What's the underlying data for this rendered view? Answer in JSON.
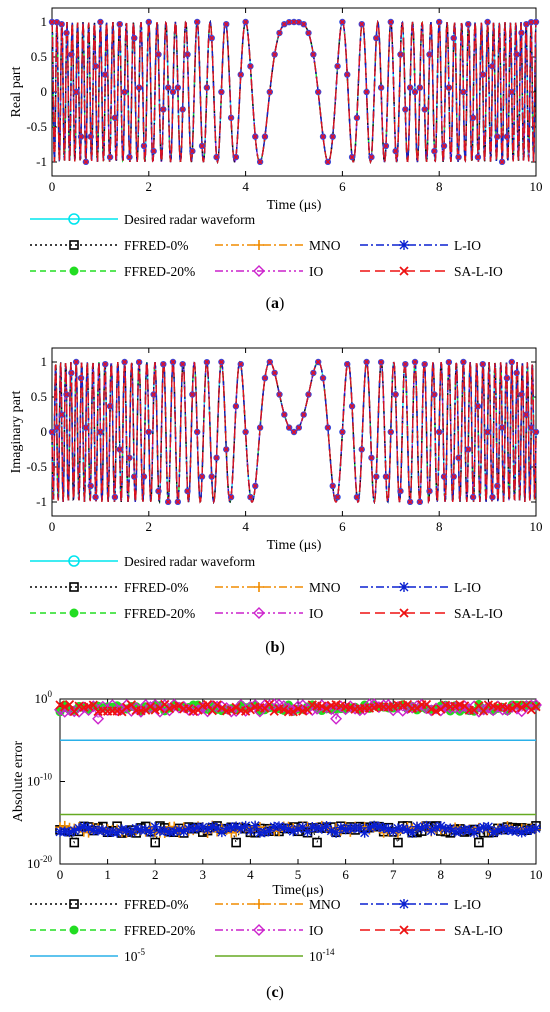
{
  "series_styles": [
    {
      "key": "desired",
      "name": "Desired radar waveform",
      "color": "#00e5ee",
      "dash": "",
      "marker": "circle"
    },
    {
      "key": "ffred0",
      "name": "FFRED-0%",
      "color": "#000000",
      "dash": "2,3",
      "marker": "square"
    },
    {
      "key": "mno",
      "name": "MNO",
      "color": "#f08c00",
      "dash": "8,3,2,3",
      "marker": "plus"
    },
    {
      "key": "lio",
      "name": "L-IO",
      "color": "#0a20d0",
      "dash": "8,3,2,3",
      "marker": "asterisk"
    },
    {
      "key": "ffred20",
      "name": "FFRED-20%",
      "color": "#22dd22",
      "dash": "6,4",
      "marker": "dot"
    },
    {
      "key": "io",
      "name": "IO",
      "color": "#cc22cc",
      "dash": "8,3,2,3,2,3",
      "marker": "diamond"
    },
    {
      "key": "salio",
      "name": "SA-L-IO",
      "color": "#ee1111",
      "dash": "10,5",
      "marker": "cross"
    }
  ],
  "chart_data": [
    {
      "id": "a",
      "type": "line",
      "panel_label": "(a)",
      "panel_letter": "a",
      "xlabel": "Time (μs)",
      "ylabel": "Real part",
      "xlim": [
        0,
        10
      ],
      "ylim": [
        -1.2,
        1.2
      ],
      "xticks": [
        0,
        2,
        4,
        6,
        8,
        10
      ],
      "yticks": [
        -1,
        -0.5,
        0,
        0.5,
        1
      ],
      "yticklabels": [
        "-1",
        "-0.5",
        "0",
        "0.5",
        "1"
      ],
      "signal": "real",
      "waveform": "cos(pi*2*(t-5)^2)",
      "legend": [
        [
          "desired"
        ],
        [
          "ffred0",
          "mno",
          "lio"
        ],
        [
          "ffred20",
          "io",
          "salio"
        ]
      ]
    },
    {
      "id": "b",
      "type": "line",
      "panel_label": "(b)",
      "panel_letter": "b",
      "xlabel": "Time (μs)",
      "ylabel": "Imaginary part",
      "xlim": [
        0,
        10
      ],
      "ylim": [
        -1.2,
        1.2
      ],
      "xticks": [
        0,
        2,
        4,
        6,
        8,
        10
      ],
      "yticks": [
        -1,
        -0.5,
        0,
        0.5,
        1
      ],
      "yticklabels": [
        "-1",
        "-0.5",
        "0",
        "0.5",
        "1"
      ],
      "signal": "imag",
      "waveform": "sin(pi*2*(t-5)^2)",
      "legend": [
        [
          "desired"
        ],
        [
          "ffred0",
          "mno",
          "lio"
        ],
        [
          "ffred20",
          "io",
          "salio"
        ]
      ]
    },
    {
      "id": "c",
      "type": "scatter",
      "panel_label": "(c)",
      "panel_letter": "c",
      "xlabel": "Time(μs)",
      "ylabel": "Absolute error",
      "xlim": [
        0,
        10
      ],
      "ylim": [
        -20,
        0
      ],
      "yscale": "log",
      "xticks": [
        0,
        1,
        2,
        3,
        4,
        5,
        6,
        7,
        8,
        9,
        10
      ],
      "yticks": [
        0,
        -10,
        -20
      ],
      "yticklabels": [
        "10^0",
        "10^-10",
        "10^-20"
      ],
      "ytick_base": "10",
      "ytick_exponents": [
        "0",
        "-10",
        "-20"
      ],
      "reference_lines": [
        {
          "name": "10^-5",
          "value": 1e-05,
          "color": "#2ab0e8"
        },
        {
          "name": "10^-14",
          "value": 1e-14,
          "color": "#66aa22"
        }
      ],
      "error_levels": {
        "upper_group": "~1e-1",
        "lower_group": "~1e-16"
      },
      "legend": [
        [
          "ffred0",
          "mno",
          "lio"
        ],
        [
          "ffred20",
          "io",
          "salio"
        ],
        [
          "ref0",
          "ref1"
        ]
      ]
    }
  ]
}
